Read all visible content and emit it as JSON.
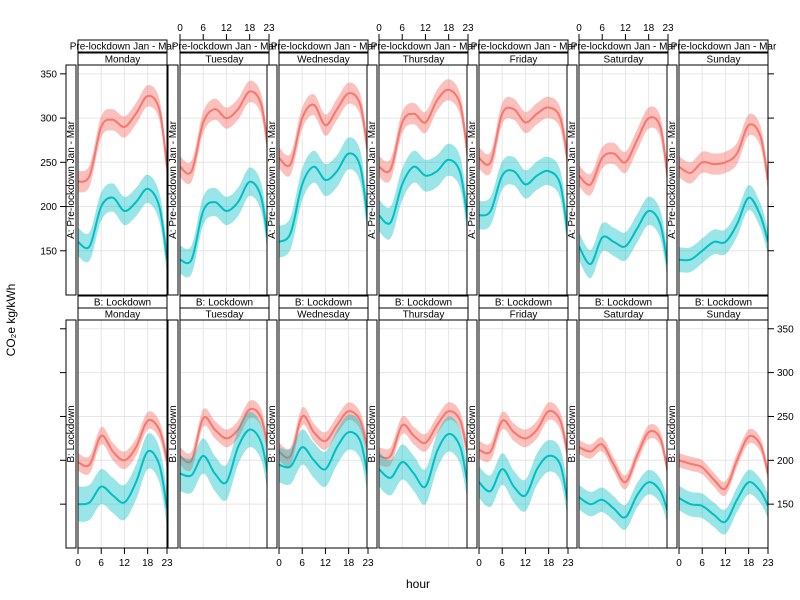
{
  "chart_data": {
    "type": "line",
    "ylabel": "CO₂e kg/kWh",
    "xlabel": "hour",
    "x_ticks": [
      0,
      6,
      12,
      18,
      23
    ],
    "x_range": [
      0,
      23
    ],
    "y_ticks": [
      150,
      200,
      250,
      300,
      350
    ],
    "ylim": [
      100,
      360
    ],
    "grid": true,
    "days": [
      "Monday",
      "Tuesday",
      "Wednesday",
      "Thursday",
      "Friday",
      "Saturday",
      "Sunday"
    ],
    "conditions": [
      "A: Pre-lockdown Jan - Mar",
      "B: Lockdown"
    ],
    "row_strips": [
      "Pre-lockdown Jan - Mar",
      "B: Lockdown"
    ],
    "side_labels": [
      "A: Pre-lockdown Jan - Mar",
      "B: Lockdown"
    ],
    "colors": {
      "pre_lockdown": "#F8766D",
      "lockdown": "#00BFC4"
    },
    "hours": [
      0,
      3,
      6,
      9,
      12,
      15,
      18,
      21,
      23
    ],
    "panels": [
      {
        "row": 0,
        "day": "Monday",
        "series": [
          {
            "values": [
              228,
              235,
              290,
              298,
              290,
              305,
              325,
              310,
              245
            ],
            "band": 12
          },
          {
            "values": [
              160,
              155,
              200,
              210,
              195,
              205,
              220,
              200,
              140
            ],
            "band": 16
          }
        ]
      },
      {
        "row": 0,
        "day": "Tuesday",
        "series": [
          {
            "values": [
              245,
              240,
              295,
              310,
              300,
              310,
              330,
              315,
              255
            ],
            "band": 12
          },
          {
            "values": [
              140,
              140,
              195,
              205,
              195,
              205,
              228,
              210,
              150
            ],
            "band": 16
          }
        ]
      },
      {
        "row": 0,
        "day": "Wednesday",
        "series": [
          {
            "values": [
              255,
              248,
              300,
              315,
              292,
              310,
              328,
              315,
              260
            ],
            "band": 12
          },
          {
            "values": [
              160,
              170,
              225,
              245,
              230,
              240,
              260,
              245,
              180
            ],
            "band": 18
          }
        ]
      },
      {
        "row": 0,
        "day": "Thursday",
        "series": [
          {
            "values": [
              245,
              242,
              295,
              305,
              295,
              320,
              332,
              315,
              255
            ],
            "band": 12
          },
          {
            "values": [
              190,
              182,
              225,
              245,
              235,
              240,
              253,
              238,
              180
            ],
            "band": 18
          }
        ]
      },
      {
        "row": 0,
        "day": "Friday",
        "series": [
          {
            "values": [
              255,
              250,
              305,
              310,
              295,
              305,
              312,
              300,
              250
            ],
            "band": 12
          },
          {
            "values": [
              190,
              195,
              235,
              240,
              225,
              235,
              240,
              225,
              165
            ],
            "band": 16
          }
        ]
      },
      {
        "row": 0,
        "day": "Saturday",
        "series": [
          {
            "values": [
              235,
              225,
              255,
              260,
              250,
              275,
              300,
              290,
              230
            ],
            "band": 12
          },
          {
            "values": [
              155,
              135,
              165,
              160,
              155,
              175,
              195,
              180,
              130
            ],
            "band": 16
          }
        ]
      },
      {
        "row": 0,
        "day": "Sunday",
        "series": [
          {
            "values": [
              245,
              238,
              250,
              248,
              250,
              260,
              292,
              280,
              230
            ],
            "band": 12
          },
          {
            "values": [
              140,
              140,
              150,
              160,
              160,
              180,
              210,
              190,
              160
            ],
            "band": 14
          }
        ]
      },
      {
        "row": 1,
        "day": "Monday",
        "series": [
          {
            "values": [
              198,
              195,
              228,
              210,
              200,
              215,
              245,
              235,
              200
            ],
            "band": 10
          },
          {
            "values": [
              150,
              152,
              170,
              160,
              152,
              175,
              210,
              195,
              145
            ],
            "band": 20
          }
        ]
      },
      {
        "row": 1,
        "day": "Tuesday",
        "series": [
          {
            "values": [
              205,
              200,
              248,
              235,
              225,
              235,
              258,
              248,
              205
            ],
            "band": 10
          },
          {
            "values": [
              185,
              183,
              205,
              185,
              175,
              215,
              235,
              220,
              175
            ],
            "band": 20
          }
        ]
      },
      {
        "row": 1,
        "day": "Wednesday",
        "series": [
          {
            "values": [
              210,
              205,
              250,
              232,
              222,
              240,
              256,
              245,
              210
            ],
            "band": 10
          },
          {
            "values": [
              195,
              193,
              215,
              200,
              190,
              215,
              232,
              222,
              180
            ],
            "band": 20
          }
        ]
      },
      {
        "row": 1,
        "day": "Thursday",
        "series": [
          {
            "values": [
              205,
              205,
              240,
              228,
              220,
              240,
              256,
              245,
              205
            ],
            "band": 10
          },
          {
            "values": [
              190,
              180,
              198,
              185,
              170,
              210,
              230,
              215,
              170
            ],
            "band": 20
          }
        ]
      },
      {
        "row": 1,
        "day": "Friday",
        "series": [
          {
            "values": [
              212,
              210,
              245,
              232,
              225,
              235,
              256,
              245,
              205
            ],
            "band": 10
          },
          {
            "values": [
              175,
              165,
              190,
              170,
              160,
              190,
              205,
              195,
              150
            ],
            "band": 18
          }
        ]
      },
      {
        "row": 1,
        "day": "Saturday",
        "series": [
          {
            "values": [
              215,
              210,
              218,
              195,
              175,
              205,
              232,
              225,
              185
            ],
            "band": 8
          },
          {
            "values": [
              158,
              150,
              155,
              145,
              135,
              160,
              175,
              165,
              140
            ],
            "band": 14
          }
        ]
      },
      {
        "row": 1,
        "day": "Sunday",
        "series": [
          {
            "values": [
              200,
              196,
              192,
              178,
              168,
              200,
              227,
              218,
              185
            ],
            "band": 8
          },
          {
            "values": [
              157,
              150,
              148,
              138,
              130,
              155,
              175,
              165,
              148
            ],
            "band": 14
          }
        ]
      }
    ]
  }
}
